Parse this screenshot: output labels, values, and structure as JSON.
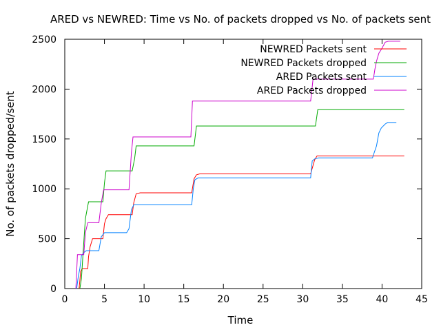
{
  "chart_data": {
    "type": "line",
    "title": "ARED vs NEWRED: Time vs No. of packets dropped vs No. of packets sent",
    "xlabel": "Time",
    "ylabel": "No. of packets dropped/sent",
    "xlim": [
      0,
      45
    ],
    "ylim": [
      0,
      2500
    ],
    "xticks": [
      0,
      5,
      10,
      15,
      20,
      25,
      30,
      35,
      40,
      45
    ],
    "yticks": [
      0,
      500,
      1000,
      1500,
      2000,
      2500
    ],
    "grid": false,
    "legend_position": "top-right",
    "series": [
      {
        "name": "NEWRED Packets sent",
        "color": "#ff0000",
        "points": [
          [
            1.8,
            0
          ],
          [
            1.9,
            80
          ],
          [
            2.0,
            170
          ],
          [
            2.2,
            200
          ],
          [
            2.9,
            200
          ],
          [
            3.0,
            320
          ],
          [
            3.2,
            420
          ],
          [
            3.5,
            500
          ],
          [
            4.8,
            500
          ],
          [
            5.0,
            650
          ],
          [
            5.2,
            700
          ],
          [
            5.5,
            740
          ],
          [
            8.5,
            740
          ],
          [
            8.7,
            860
          ],
          [
            9.0,
            950
          ],
          [
            9.5,
            960
          ],
          [
            16.0,
            960
          ],
          [
            16.3,
            1100
          ],
          [
            16.6,
            1140
          ],
          [
            17.0,
            1150
          ],
          [
            31.0,
            1150
          ],
          [
            31.5,
            1290
          ],
          [
            31.8,
            1330
          ],
          [
            42.8,
            1330
          ]
        ]
      },
      {
        "name": "NEWRED Packets dropped",
        "color": "#00aa00",
        "points": [
          [
            1.9,
            0
          ],
          [
            2.1,
            100
          ],
          [
            2.3,
            350
          ],
          [
            2.6,
            700
          ],
          [
            3.0,
            870
          ],
          [
            4.8,
            870
          ],
          [
            5.0,
            1060
          ],
          [
            5.2,
            1180
          ],
          [
            8.5,
            1180
          ],
          [
            8.8,
            1300
          ],
          [
            9.0,
            1430
          ],
          [
            16.3,
            1430
          ],
          [
            16.6,
            1630
          ],
          [
            31.6,
            1630
          ],
          [
            31.9,
            1795
          ],
          [
            42.8,
            1795
          ]
        ]
      },
      {
        "name": "ARED Packets sent",
        "color": "#0080ff",
        "points": [
          [
            1.5,
            0
          ],
          [
            1.7,
            120
          ],
          [
            1.9,
            200
          ],
          [
            2.1,
            330
          ],
          [
            2.4,
            360
          ],
          [
            2.7,
            380
          ],
          [
            4.3,
            380
          ],
          [
            4.6,
            520
          ],
          [
            5.0,
            560
          ],
          [
            7.8,
            560
          ],
          [
            8.1,
            600
          ],
          [
            8.4,
            790
          ],
          [
            8.7,
            840
          ],
          [
            16.0,
            840
          ],
          [
            16.2,
            1000
          ],
          [
            16.4,
            1090
          ],
          [
            16.8,
            1110
          ],
          [
            31.0,
            1110
          ],
          [
            31.2,
            1280
          ],
          [
            31.5,
            1300
          ],
          [
            32.0,
            1310
          ],
          [
            38.8,
            1310
          ],
          [
            39.0,
            1360
          ],
          [
            39.3,
            1430
          ],
          [
            39.6,
            1560
          ],
          [
            39.9,
            1610
          ],
          [
            40.4,
            1650
          ],
          [
            40.7,
            1665
          ],
          [
            41.8,
            1665
          ]
        ]
      },
      {
        "name": "ARED Packets dropped",
        "color": "#cc00cc",
        "points": [
          [
            1.4,
            0
          ],
          [
            1.6,
            340
          ],
          [
            2.4,
            340
          ],
          [
            2.6,
            560
          ],
          [
            2.9,
            660
          ],
          [
            4.3,
            660
          ],
          [
            4.6,
            860
          ],
          [
            4.9,
            990
          ],
          [
            8.1,
            990
          ],
          [
            8.4,
            1360
          ],
          [
            8.6,
            1520
          ],
          [
            15.9,
            1520
          ],
          [
            16.1,
            1880
          ],
          [
            31.0,
            1880
          ],
          [
            31.3,
            2100
          ],
          [
            38.9,
            2100
          ],
          [
            39.1,
            2200
          ],
          [
            39.3,
            2280
          ],
          [
            39.6,
            2360
          ],
          [
            40.0,
            2410
          ],
          [
            40.4,
            2470
          ],
          [
            40.8,
            2480
          ],
          [
            42.3,
            2480
          ]
        ]
      }
    ]
  }
}
